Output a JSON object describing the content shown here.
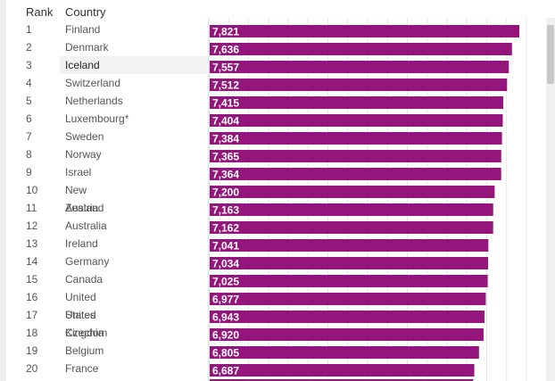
{
  "table": {
    "rank_header": "Rank",
    "country_header": "Country",
    "selected_country": "Iceland"
  },
  "colors": {
    "bar": "#94167c",
    "grid": "#e6e6e6",
    "label": "#ffffff"
  },
  "chart_data": {
    "type": "bar",
    "orientation": "horizontal",
    "ranks": [
      "1",
      "2",
      "3",
      "4",
      "5",
      "6",
      "7",
      "8",
      "9",
      "10",
      "11",
      "12",
      "13",
      "14",
      "15",
      "16",
      "17",
      "18",
      "19",
      "20"
    ],
    "categories": [
      "Finland",
      "Denmark",
      "Iceland",
      "Switzerland",
      "Netherlands",
      "Luxembourg*",
      "Sweden",
      "Norway",
      "Israel",
      "New Zealand",
      "Austria",
      "Australia",
      "Ireland",
      "Germany",
      "Canada",
      "United States",
      "United Kingdom",
      "Czechia",
      "Belgium",
      "France"
    ],
    "values": [
      7.821,
      7.636,
      7.557,
      7.512,
      7.415,
      7.404,
      7.384,
      7.365,
      7.364,
      7.2,
      7.163,
      7.162,
      7.041,
      7.034,
      7.025,
      6.977,
      6.943,
      6.92,
      6.805,
      6.687
    ],
    "value_labels": [
      "7,821",
      "7,636",
      "7,557",
      "7,512",
      "7,415",
      "7,404",
      "7,384",
      "7,365",
      "7,364",
      "7,200",
      "7,163",
      "7,162",
      "7,041",
      "7,034",
      "7,025",
      "6,977",
      "6,943",
      "6,920",
      "6,805",
      "6,687"
    ],
    "xlim": [
      0,
      8.0
    ],
    "grid": true
  }
}
